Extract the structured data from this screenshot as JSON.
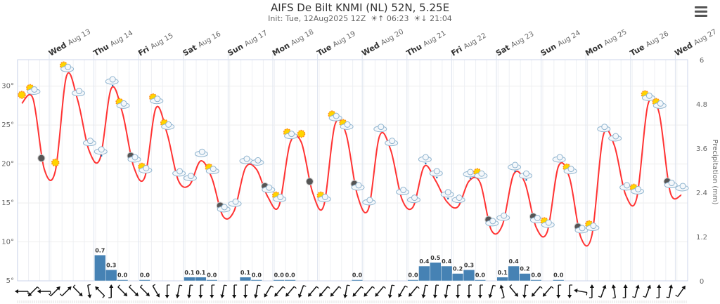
{
  "header": {
    "title": "AIFS De Bilt KNMI (NL) 52N, 5.25E",
    "init": "Init: Tue, 12Aug2025 12Z",
    "sunrise": "06:23",
    "sunset": "21:04",
    "menu_icon": "hamburger-menu-icon"
  },
  "chart_data": {
    "type": "line+bar",
    "title": "AIFS De Bilt KNMI (NL) 52N, 5.25E",
    "time_step_hours": 6,
    "first_time": "Tue Aug 12 14:00",
    "day_labels": [
      {
        "weekday": "Wed",
        "date": "Aug 13"
      },
      {
        "weekday": "Thu",
        "date": "Aug 14"
      },
      {
        "weekday": "Fri",
        "date": "Aug 15"
      },
      {
        "weekday": "Sat",
        "date": "Aug 16"
      },
      {
        "weekday": "Sun",
        "date": "Aug 17"
      },
      {
        "weekday": "Mon",
        "date": "Aug 18"
      },
      {
        "weekday": "Tue",
        "date": "Aug 19"
      },
      {
        "weekday": "Wed",
        "date": "Aug 20"
      },
      {
        "weekday": "Thu",
        "date": "Aug 21"
      },
      {
        "weekday": "Fri",
        "date": "Aug 22"
      },
      {
        "weekday": "Sat",
        "date": "Aug 23"
      },
      {
        "weekday": "Sun",
        "date": "Aug 24"
      },
      {
        "weekday": "Mon",
        "date": "Aug 25"
      },
      {
        "weekday": "Tue",
        "date": "Aug 26"
      },
      {
        "weekday": "Wed",
        "date": "Aug 27"
      }
    ],
    "left_axis": {
      "ticks": [
        "5°",
        "10°",
        "15°",
        "20°",
        "25°",
        "30°"
      ],
      "tick_values": [
        5,
        10,
        15,
        20,
        25,
        30
      ],
      "range": [
        5,
        33.4
      ]
    },
    "right_axis": {
      "label": "Precipitation (mm)",
      "ticks": [
        "0",
        "1.2",
        "2.4",
        "3.6",
        "4.8",
        "6"
      ],
      "tick_values": [
        0,
        1.2,
        2.4,
        3.6,
        4.8,
        6
      ],
      "range": [
        0,
        6
      ]
    },
    "grid": true,
    "temperature": {
      "color": "#ff3333",
      "values": [
        27.8,
        28.4,
        19.4,
        19.1,
        31.3,
        28.2,
        21.8,
        20.7,
        29.7,
        26.6,
        19.7,
        18.3,
        27.2,
        23.9,
        17.9,
        17.3,
        20.4,
        18.2,
        13.3,
        14.0,
        19.5,
        19.3,
        15.8,
        14.6,
        22.7,
        22.8,
        16.4,
        14.6,
        25.0,
        23.9,
        16.1,
        14.2,
        23.6,
        21.8,
        15.5,
        14.5,
        19.7,
        17.9,
        15.2,
        14.5,
        17.8,
        17.6,
        11.5,
        12.2,
        18.7,
        17.6,
        11.9,
        11.3,
        19.7,
        18.2,
        10.6,
        10.9,
        23.6,
        22.4,
        16.1,
        15.6,
        27.6,
        26.6,
        16.4,
        16.0
      ]
    },
    "precipitation": {
      "color": "#4682b4",
      "values": [
        null,
        null,
        null,
        null,
        null,
        null,
        null,
        0.7,
        0.3,
        0.0,
        null,
        0.0,
        null,
        null,
        null,
        0.1,
        0.1,
        0.0,
        null,
        null,
        0.1,
        0.0,
        null,
        0.0,
        0.0,
        null,
        null,
        null,
        null,
        null,
        0.0,
        null,
        null,
        null,
        null,
        0.0,
        0.4,
        0.5,
        0.4,
        0.2,
        0.3,
        0.0,
        null,
        0.1,
        0.4,
        0.2,
        0.0,
        null,
        0.0,
        null,
        null,
        null,
        null,
        null,
        null,
        null,
        null,
        null,
        null,
        null
      ],
      "labels": [
        "",
        "",
        "",
        "",
        "",
        "",
        "",
        "0.7",
        "0.3",
        "0.0",
        "",
        "0.0",
        "",
        "",
        "",
        "0.1",
        "0.1",
        "0.0",
        "",
        "",
        "0.1",
        "0.0",
        "",
        "0.0",
        "0.0",
        "",
        "",
        "",
        "",
        "",
        "0.0",
        "",
        "",
        "",
        "",
        "0.0",
        "0.4",
        "0.5",
        "0.4",
        "0.2",
        "0.3",
        "0.0",
        "",
        "0.1",
        "0.4",
        "0.2",
        "0.0",
        "",
        "0.0",
        "",
        "",
        "",
        "",
        "",
        "",
        "",
        "",
        "",
        "",
        ""
      ]
    },
    "wind_direction_deg": [
      90,
      45,
      90,
      225,
      225,
      315,
      350,
      135,
      180,
      315,
      315,
      315,
      330,
      0,
      10,
      5,
      0,
      0,
      10,
      0,
      0,
      10,
      30,
      40,
      40,
      20,
      40,
      40,
      40,
      10,
      40,
      40,
      40,
      10,
      30,
      40,
      10,
      5,
      10,
      0,
      0,
      0,
      15,
      165,
      320,
      5,
      40,
      40,
      0,
      0,
      100,
      180,
      200,
      170,
      180,
      195,
      200,
      180,
      190,
      215
    ],
    "weather_icons": [
      "sun",
      "sun-cloud",
      "moon",
      "sun",
      "sun-cloud",
      "cloud",
      "cloud",
      "cloud-rain",
      "cloud-rain",
      "sun-cloud",
      "moon-cloud",
      "sun-cloud",
      "sun-cloud",
      "sun-cloud",
      "cloud",
      "cloud",
      "cloud",
      "sun-cloud",
      "moon-cloud",
      "cloud",
      "cloud",
      "cloud",
      "moon-cloud",
      "sun-cloud",
      "sun-cloud",
      "sun",
      "moon",
      "sun-cloud",
      "sun-cloud",
      "sun-cloud",
      "moon-cloud",
      "cloud",
      "cloud",
      "cloud",
      "cloud",
      "cloud",
      "cloud-rain",
      "cloud-rain",
      "cloud-rain",
      "cloud",
      "cloud-rain",
      "sun-cloud",
      "moon-cloud",
      "cloud",
      "cloud-rain",
      "cloud-rain",
      "moon-cloud",
      "sun-cloud",
      "cloud",
      "sun-cloud",
      "moon-cloud",
      "sun-cloud",
      "cloud",
      "cloud",
      "cloud",
      "sun-cloud",
      "sun-cloud",
      "sun-cloud",
      "moon-cloud",
      "cloud"
    ]
  }
}
